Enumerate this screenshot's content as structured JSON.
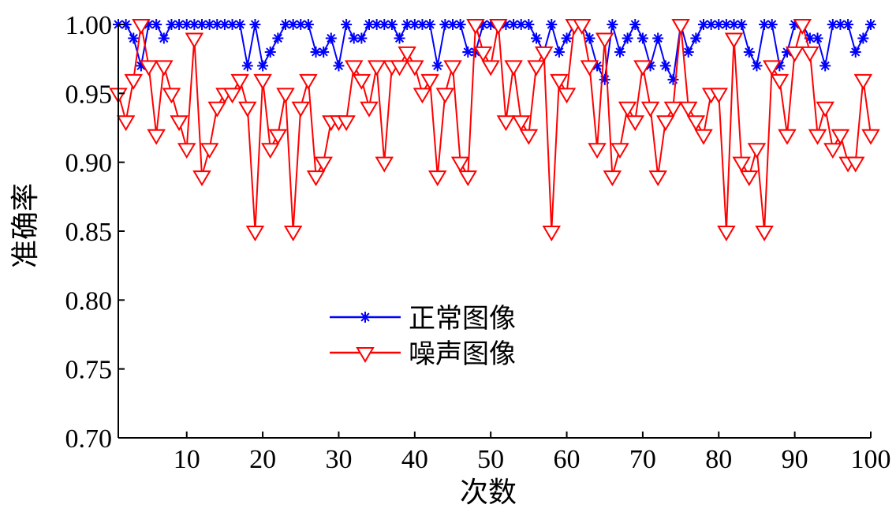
{
  "chart_data": {
    "type": "line",
    "xlabel": "次数",
    "ylabel": "准确率",
    "xlim": [
      1,
      100
    ],
    "ylim": [
      0.7,
      1.0
    ],
    "x_ticks": [
      10,
      20,
      30,
      40,
      50,
      60,
      70,
      80,
      90,
      100
    ],
    "y_ticks": [
      0.7,
      0.75,
      0.8,
      0.85,
      0.9,
      0.95,
      1.0
    ],
    "x_tick_labels": [
      "10",
      "20",
      "30",
      "40",
      "50",
      "60",
      "70",
      "80",
      "90",
      "100"
    ],
    "y_tick_labels": [
      "0.70",
      "0.75",
      "0.80",
      "0.85",
      "0.90",
      "0.95",
      "1.00"
    ],
    "grid": false,
    "legend_position": "center-left",
    "series": [
      {
        "name": "正常图像",
        "color": "#0000ff",
        "marker": "asterisk",
        "values": [
          1.0,
          1.0,
          0.99,
          0.97,
          1.0,
          1.0,
          0.99,
          1.0,
          1.0,
          1.0,
          1.0,
          1.0,
          1.0,
          1.0,
          1.0,
          1.0,
          1.0,
          0.97,
          1.0,
          0.97,
          0.98,
          0.99,
          1.0,
          1.0,
          1.0,
          1.0,
          0.98,
          0.98,
          0.99,
          0.97,
          1.0,
          0.99,
          0.99,
          1.0,
          1.0,
          1.0,
          1.0,
          0.99,
          1.0,
          1.0,
          1.0,
          1.0,
          0.97,
          1.0,
          1.0,
          1.0,
          0.98,
          0.98,
          1.0,
          1.0,
          1.0,
          1.0,
          1.0,
          1.0,
          1.0,
          0.99,
          0.98,
          1.0,
          0.98,
          0.99,
          1.0,
          1.0,
          0.99,
          0.97,
          0.96,
          1.0,
          0.98,
          0.99,
          1.0,
          0.99,
          0.97,
          0.99,
          0.97,
          0.96,
          1.0,
          0.98,
          0.99,
          1.0,
          1.0,
          1.0,
          1.0,
          1.0,
          1.0,
          0.98,
          0.97,
          1.0,
          1.0,
          0.97,
          0.98,
          1.0,
          1.0,
          0.99,
          0.99,
          0.97,
          1.0,
          1.0,
          1.0,
          0.98,
          0.99,
          1.0
        ]
      },
      {
        "name": "噪声图像",
        "color": "#ff0000",
        "marker": "triangle-down",
        "values": [
          0.95,
          0.93,
          0.96,
          1.0,
          0.97,
          0.92,
          0.97,
          0.95,
          0.93,
          0.91,
          0.99,
          0.89,
          0.91,
          0.94,
          0.95,
          0.95,
          0.96,
          0.94,
          0.85,
          0.96,
          0.91,
          0.92,
          0.95,
          0.85,
          0.94,
          0.96,
          0.89,
          0.9,
          0.93,
          0.93,
          0.93,
          0.97,
          0.96,
          0.94,
          0.97,
          0.9,
          0.97,
          0.97,
          0.98,
          0.97,
          0.95,
          0.96,
          0.89,
          0.95,
          0.97,
          0.9,
          0.89,
          1.0,
          0.98,
          0.97,
          1.0,
          0.93,
          0.97,
          0.93,
          0.92,
          0.97,
          0.98,
          0.85,
          0.96,
          0.95,
          1.0,
          1.0,
          0.97,
          0.91,
          0.99,
          0.89,
          0.91,
          0.94,
          0.93,
          0.97,
          0.94,
          0.89,
          0.93,
          0.94,
          1.0,
          0.94,
          0.93,
          0.92,
          0.95,
          0.95,
          0.85,
          0.99,
          0.9,
          0.89,
          0.91,
          0.85,
          0.97,
          0.96,
          0.92,
          0.98,
          1.0,
          0.98,
          0.92,
          0.94,
          0.91,
          0.92,
          0.9,
          0.9,
          0.96,
          0.92
        ]
      }
    ]
  }
}
